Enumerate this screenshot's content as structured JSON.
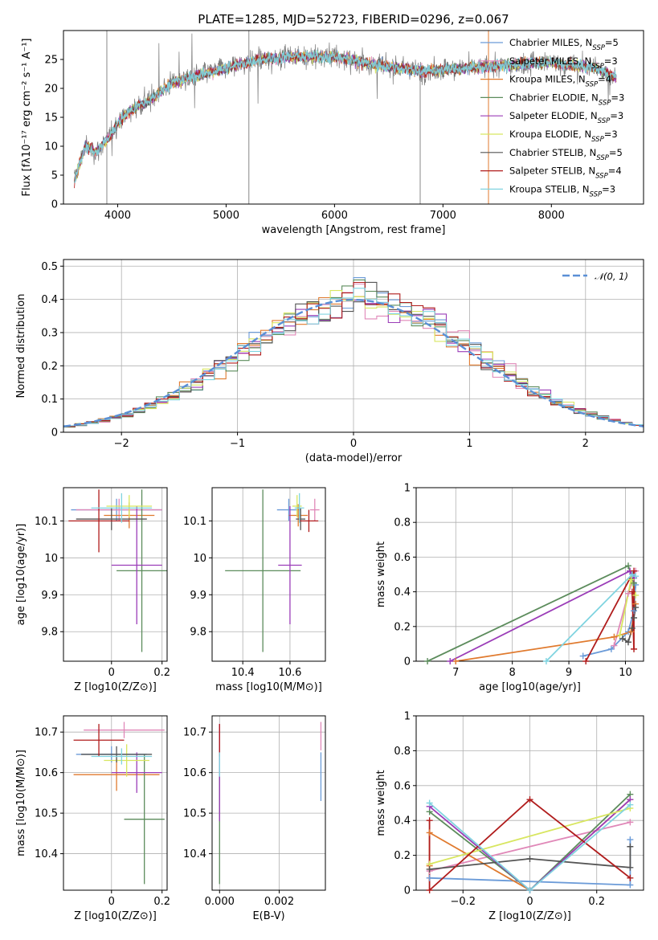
{
  "figure": {
    "title": "PLATE=1285, MJD=52723, FIBERID=0296, z=0.067"
  },
  "colors": {
    "Chabrier MILES": "#6b9bd8",
    "Salpeter MILES": "#e088b8",
    "Kroupa MILES": "#e07a2e",
    "Chabrier ELODIE": "#5c8c5c",
    "Salpeter ELODIE": "#9b3db8",
    "Kroupa ELODIE": "#d8e660",
    "Chabrier STELIB": "#555555",
    "Salpeter STELIB": "#b01c1c",
    "Kroupa STELIB": "#80d4e0"
  },
  "chart_data": [
    {
      "id": "spectrum",
      "type": "line",
      "title": "PLATE=1285, MJD=52723, FIBERID=0296, z=0.067",
      "xlabel": "wavelength [Angstrom, rest frame]",
      "ylabel": "Flux [fλ10⁻¹⁷ erg cm⁻² s⁻¹ A⁻¹]",
      "xlim": [
        3500,
        8850
      ],
      "ylim": [
        0,
        30
      ],
      "xticks": [
        4000,
        5000,
        6000,
        7000,
        8000
      ],
      "yticks": [
        0,
        5,
        10,
        15,
        20,
        25
      ],
      "grid": false,
      "legend_position": "top-right",
      "continuum": {
        "x": [
          3600,
          3700,
          3800,
          3900,
          4000,
          4100,
          4200,
          4300,
          4400,
          4500,
          4700,
          4900,
          5100,
          5300,
          5600,
          6000,
          6400,
          6800,
          7200,
          7600,
          8000,
          8400,
          8600
        ],
        "y": [
          4,
          10,
          9,
          11,
          14,
          16,
          17,
          18,
          19.5,
          21,
          22,
          23,
          24,
          25,
          25.5,
          25.5,
          24,
          23,
          23.5,
          24,
          24.5,
          23.5,
          22
        ]
      },
      "series": [
        {
          "name": "Chabrier MILES, N_SSP=5"
        },
        {
          "name": "Salpeter MILES, N_SSP=3"
        },
        {
          "name": "Kroupa MILES, N_SSP=4"
        },
        {
          "name": "Chabrier ELODIE, N_SSP=3"
        },
        {
          "name": "Salpeter ELODIE, N_SSP=3"
        },
        {
          "name": "Kroupa ELODIE, N_SSP=3"
        },
        {
          "name": "Chabrier STELIB, N_SSP=5"
        },
        {
          "name": "Salpeter STELIB, N_SSP=4"
        },
        {
          "name": "Kroupa STELIB, N_SSP=3"
        }
      ]
    },
    {
      "id": "residuals",
      "type": "bar",
      "xlabel": "(data-model)/error",
      "ylabel": "Normed distribution",
      "xlim": [
        -2.5,
        2.5
      ],
      "ylim": [
        0,
        0.52
      ],
      "xticks": [
        -2,
        -1,
        0,
        1,
        2
      ],
      "yticks": [
        0.0,
        0.1,
        0.2,
        0.3,
        0.4,
        0.5
      ],
      "grid": true,
      "legend_position": "top-right",
      "reference": {
        "name": "𝒩(0, 1)",
        "mean": 0,
        "sigma": 1
      },
      "bin_width": 0.1
    },
    {
      "id": "age-vs-Z",
      "type": "scatter",
      "xlabel": "Z [log10(Z/Z⊙)]",
      "ylabel": "age  [log10(age/yr)]",
      "xlim": [
        -0.19,
        0.22
      ],
      "ylim": [
        9.72,
        10.19
      ],
      "xticks": [
        0.0,
        0.2
      ],
      "yticks": [
        9.8,
        9.9,
        10.0,
        10.1
      ],
      "grid": true,
      "points": [
        {
          "series": "Chabrier MILES",
          "x": 0.02,
          "y": 10.13,
          "xerr": 0.18,
          "yerr": 0.03
        },
        {
          "series": "Salpeter MILES",
          "x": 0.03,
          "y": 10.13,
          "xerr": 0.17,
          "yerr": 0.03
        },
        {
          "series": "Kroupa MILES",
          "x": 0.07,
          "y": 10.115,
          "xerr": 0.1,
          "yerr": 0.035
        },
        {
          "series": "Chabrier ELODIE",
          "x": 0.12,
          "y": 9.965,
          "xerr": 0.1,
          "yerr": 0.22
        },
        {
          "series": "Salpeter ELODIE",
          "x": 0.1,
          "y": 9.98,
          "xerr": 0.1,
          "yerr": 0.16
        },
        {
          "series": "Kroupa ELODIE",
          "x": 0.07,
          "y": 10.14,
          "xerr": 0.09,
          "yerr": 0.03
        },
        {
          "series": "Chabrier STELIB",
          "x": 0.0,
          "y": 10.105,
          "xerr": 0.14,
          "yerr": 0.03
        },
        {
          "series": "Salpeter STELIB",
          "x": -0.05,
          "y": 10.1,
          "xerr": 0.12,
          "yerr": 0.085
        },
        {
          "series": "Kroupa STELIB",
          "x": 0.04,
          "y": 10.135,
          "xerr": 0.12,
          "yerr": 0.04
        }
      ]
    },
    {
      "id": "age-vs-mass",
      "type": "scatter",
      "xlabel": "mass [log10(M/M⊙)]",
      "ylabel": "",
      "xlim": [
        10.27,
        10.75
      ],
      "ylim": [
        9.72,
        10.19
      ],
      "xticks": [
        10.4,
        10.6
      ],
      "yticks": [
        9.8,
        9.9,
        10.0,
        10.1
      ],
      "grid": true,
      "points": [
        {
          "series": "Chabrier MILES",
          "x": 10.595,
          "y": 10.13,
          "xerr": 0.05,
          "yerr": 0.03
        },
        {
          "series": "Salpeter MILES",
          "x": 10.705,
          "y": 10.13,
          "xerr": 0.02,
          "yerr": 0.03
        },
        {
          "series": "Kroupa MILES",
          "x": 10.635,
          "y": 10.115,
          "xerr": 0.04,
          "yerr": 0.03
        },
        {
          "series": "Chabrier ELODIE",
          "x": 10.485,
          "y": 9.965,
          "xerr": 0.16,
          "yerr": 0.22
        },
        {
          "series": "Salpeter ELODIE",
          "x": 10.6,
          "y": 9.98,
          "xerr": 0.05,
          "yerr": 0.16
        },
        {
          "series": "Kroupa ELODIE",
          "x": 10.63,
          "y": 10.14,
          "xerr": 0.02,
          "yerr": 0.03
        },
        {
          "series": "Chabrier STELIB",
          "x": 10.645,
          "y": 10.105,
          "xerr": 0.02,
          "yerr": 0.03
        },
        {
          "series": "Salpeter STELIB",
          "x": 10.68,
          "y": 10.1,
          "xerr": 0.04,
          "yerr": 0.03
        },
        {
          "series": "Kroupa STELIB",
          "x": 10.64,
          "y": 10.135,
          "xerr": 0.02,
          "yerr": 0.04
        }
      ]
    },
    {
      "id": "weight-vs-age",
      "type": "line",
      "xlabel": "age  [log10(age/yr)]",
      "ylabel": "mass weight",
      "xlim": [
        6.3,
        10.32
      ],
      "ylim": [
        0,
        1
      ],
      "xticks": [
        7,
        8,
        9,
        10
      ],
      "yticks": [
        0.0,
        0.2,
        0.4,
        0.6,
        0.8,
        1.0
      ],
      "grid": true,
      "series": [
        {
          "name": "Chabrier MILES",
          "x": [
            9.25,
            9.75,
            10.05,
            10.15,
            10.18
          ],
          "y": [
            0.03,
            0.07,
            0.17,
            0.29,
            0.44
          ]
        },
        {
          "name": "Salpeter MILES",
          "x": [
            9.8,
            10.05,
            10.18
          ],
          "y": [
            0.09,
            0.39,
            0.52
          ]
        },
        {
          "name": "Kroupa MILES",
          "x": [
            7.0,
            9.8,
            10.1,
            10.18
          ],
          "y": [
            0.0,
            0.14,
            0.17,
            0.33
          ]
        },
        {
          "name": "Chabrier ELODIE",
          "x": [
            6.5,
            10.05,
            10.15
          ],
          "y": [
            0.0,
            0.55,
            0.45
          ]
        },
        {
          "name": "Salpeter ELODIE",
          "x": [
            6.9,
            10.08,
            10.15
          ],
          "y": [
            0.0,
            0.52,
            0.48
          ]
        },
        {
          "name": "Kroupa ELODIE",
          "x": [
            9.9,
            10.1,
            10.18
          ],
          "y": [
            0.15,
            0.47,
            0.38
          ]
        },
        {
          "name": "Chabrier STELIB",
          "x": [
            9.95,
            10.05,
            10.12,
            10.15,
            10.18
          ],
          "y": [
            0.13,
            0.11,
            0.19,
            0.25,
            0.31
          ]
        },
        {
          "name": "Salpeter STELIB",
          "x": [
            9.3,
            10.15,
            10.15,
            10.12
          ],
          "y": [
            0.0,
            0.52,
            0.07,
            0.4
          ]
        },
        {
          "name": "Kroupa STELIB",
          "x": [
            8.6,
            10.12,
            10.18
          ],
          "y": [
            0.0,
            0.5,
            0.49
          ]
        }
      ]
    },
    {
      "id": "mass-vs-Z",
      "type": "scatter",
      "xlabel": "Z [log10(Z/Z⊙)]",
      "ylabel": "mass [log10(M/M⊙)]",
      "xlim": [
        -0.19,
        0.22
      ],
      "ylim": [
        10.31,
        10.74
      ],
      "xticks": [
        0.0,
        0.2
      ],
      "yticks": [
        10.4,
        10.5,
        10.6,
        10.7
      ],
      "grid": true,
      "points": [
        {
          "series": "Chabrier MILES",
          "x": 0.0,
          "y": 10.645,
          "xerr": 0.14,
          "yerr": 0.02
        },
        {
          "series": "Salpeter MILES",
          "x": 0.05,
          "y": 10.705,
          "xerr": 0.16,
          "yerr": 0.02
        },
        {
          "series": "Kroupa MILES",
          "x": 0.02,
          "y": 10.595,
          "xerr": 0.17,
          "yerr": 0.04
        },
        {
          "series": "Chabrier ELODIE",
          "x": 0.13,
          "y": 10.485,
          "xerr": 0.08,
          "yerr": 0.16
        },
        {
          "series": "Salpeter ELODIE",
          "x": 0.1,
          "y": 10.6,
          "xerr": 0.1,
          "yerr": 0.05
        },
        {
          "series": "Kroupa ELODIE",
          "x": 0.06,
          "y": 10.63,
          "xerr": 0.09,
          "yerr": 0.04
        },
        {
          "series": "Chabrier STELIB",
          "x": 0.02,
          "y": 10.645,
          "xerr": 0.14,
          "yerr": 0.02
        },
        {
          "series": "Salpeter STELIB",
          "x": -0.05,
          "y": 10.68,
          "xerr": 0.1,
          "yerr": 0.04
        },
        {
          "series": "Kroupa STELIB",
          "x": 0.04,
          "y": 10.64,
          "xerr": 0.12,
          "yerr": 0.02
        }
      ]
    },
    {
      "id": "mass-vs-ebv",
      "type": "scatter",
      "xlabel": "E(B-V)",
      "ylabel": "",
      "xlim": [
        -0.00025,
        0.00355
      ],
      "ylim": [
        10.31,
        10.74
      ],
      "xticks": [
        0.0,
        0.002
      ],
      "xtick_labels": [
        "0.000",
        "0.002"
      ],
      "yticks": [
        10.4,
        10.5,
        10.6,
        10.7
      ],
      "grid": true,
      "points": [
        {
          "series": "Chabrier MILES",
          "x": 0.0034,
          "y": 10.59,
          "xerr": 0,
          "yerr": 0.06
        },
        {
          "series": "Salpeter MILES",
          "x": 0.0034,
          "y": 10.69,
          "xerr": 0,
          "yerr": 0.035
        },
        {
          "series": "Chabrier ELODIE",
          "x": 0.0,
          "y": 10.485,
          "xerr": 0,
          "yerr": 0.16
        },
        {
          "series": "Salpeter ELODIE",
          "x": 0.0,
          "y": 10.6,
          "xerr": 0,
          "yerr": 0.12
        },
        {
          "series": "Salpeter STELIB",
          "x": 0.0,
          "y": 10.68,
          "xerr": 0,
          "yerr": 0.04
        },
        {
          "series": "Kroupa STELIB",
          "x": 0.0,
          "y": 10.62,
          "xerr": 0,
          "yerr": 0.03
        }
      ]
    },
    {
      "id": "weight-vs-Z",
      "type": "line",
      "xlabel": "Z [log10(Z/Z⊙)]",
      "ylabel": "mass weight",
      "xlim": [
        -0.34,
        0.34
      ],
      "ylim": [
        0,
        1
      ],
      "xticks": [
        -0.2,
        0.0,
        0.2
      ],
      "yticks": [
        0.0,
        0.2,
        0.4,
        0.6,
        0.8,
        1.0
      ],
      "grid": true,
      "series": [
        {
          "name": "Chabrier MILES",
          "x": [
            -0.3,
            0.3,
            0.3
          ],
          "y": [
            0.07,
            0.03,
            0.29
          ]
        },
        {
          "name": "Salpeter MILES",
          "x": [
            -0.3,
            0.3
          ],
          "y": [
            0.11,
            0.39
          ]
        },
        {
          "name": "Kroupa MILES",
          "x": [
            -0.3,
            -0.3,
            0.0,
            0.3
          ],
          "y": [
            0.14,
            0.33,
            0.0,
            0.52
          ]
        },
        {
          "name": "Chabrier ELODIE",
          "x": [
            -0.3,
            0.0,
            0.3
          ],
          "y": [
            0.45,
            0.0,
            0.55
          ]
        },
        {
          "name": "Salpeter ELODIE",
          "x": [
            -0.3,
            0.0,
            0.3
          ],
          "y": [
            0.48,
            0.0,
            0.52
          ]
        },
        {
          "name": "Kroupa ELODIE",
          "x": [
            -0.3,
            0.3
          ],
          "y": [
            0.15,
            0.47
          ]
        },
        {
          "name": "Chabrier STELIB",
          "x": [
            -0.3,
            0.0,
            0.3,
            0.3
          ],
          "y": [
            0.12,
            0.18,
            0.13,
            0.25
          ]
        },
        {
          "name": "Salpeter STELIB",
          "x": [
            -0.3,
            -0.3,
            0.0,
            0.3
          ],
          "y": [
            0.4,
            0.0,
            0.52,
            0.07
          ]
        },
        {
          "name": "Kroupa STELIB",
          "x": [
            -0.3,
            0.0,
            0.3
          ],
          "y": [
            0.5,
            0.0,
            0.49
          ]
        }
      ]
    }
  ]
}
